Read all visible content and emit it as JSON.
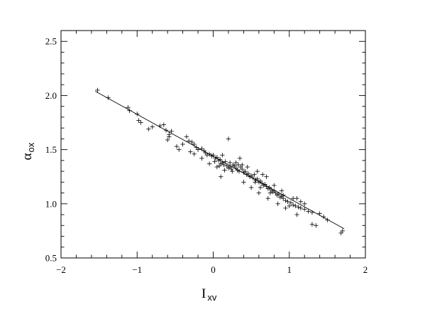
{
  "chart_data": {
    "type": "scatter",
    "xlabel": {
      "main": "I",
      "sub": "xv"
    },
    "ylabel": {
      "main": "α",
      "sub": "ox"
    },
    "xlim": [
      -2,
      2
    ],
    "ylim": [
      0.5,
      2.6
    ],
    "x_major_ticks": [
      -2,
      -1,
      0,
      1,
      2
    ],
    "x_tick_labels": [
      "−2",
      "−1",
      "0",
      "1",
      "2"
    ],
    "y_major_ticks": [
      0.5,
      1.0,
      1.5,
      2.0,
      2.5
    ],
    "y_tick_labels": [
      "0.5",
      "1.0",
      "1.5",
      "2.0",
      "2.5"
    ],
    "x_minor_step": 0.2,
    "y_minor_step": 0.1,
    "grid": false,
    "marker": "plus",
    "fit_line": {
      "x": [
        -1.55,
        1.72
      ],
      "y": [
        2.04,
        0.77
      ]
    },
    "points": [
      [
        -1.52,
        2.05
      ],
      [
        -1.38,
        1.98
      ],
      [
        -1.12,
        1.89
      ],
      [
        -1.0,
        1.83
      ],
      [
        -0.98,
        1.77
      ],
      [
        -0.95,
        1.75
      ],
      [
        -0.85,
        1.69
      ],
      [
        -0.8,
        1.71
      ],
      [
        -0.7,
        1.72
      ],
      [
        -0.62,
        1.68
      ],
      [
        -0.55,
        1.67
      ],
      [
        -0.58,
        1.64
      ],
      [
        -0.6,
        1.59
      ],
      [
        -0.58,
        1.62
      ],
      [
        -0.35,
        1.62
      ],
      [
        -0.48,
        1.53
      ],
      [
        -0.32,
        1.58
      ],
      [
        -0.28,
        1.57
      ],
      [
        -0.25,
        1.55
      ],
      [
        -0.22,
        1.52
      ],
      [
        -0.2,
        1.5
      ],
      [
        -0.3,
        1.48
      ],
      [
        -0.15,
        1.51
      ],
      [
        -0.12,
        1.49
      ],
      [
        -0.1,
        1.47
      ],
      [
        -0.08,
        1.45
      ],
      [
        -0.05,
        1.46
      ],
      [
        -0.02,
        1.44
      ],
      [
        0.0,
        1.45
      ],
      [
        0.03,
        1.42
      ],
      [
        0.05,
        1.43
      ],
      [
        0.07,
        1.4
      ],
      [
        0.09,
        1.41
      ],
      [
        0.1,
        1.37
      ],
      [
        0.12,
        1.38
      ],
      [
        0.08,
        1.35
      ],
      [
        0.05,
        1.34
      ],
      [
        0.14,
        1.36
      ],
      [
        0.16,
        1.39
      ],
      [
        0.18,
        1.35
      ],
      [
        0.2,
        1.33
      ],
      [
        0.22,
        1.34
      ],
      [
        0.24,
        1.32
      ],
      [
        0.26,
        1.36
      ],
      [
        0.28,
        1.35
      ],
      [
        0.3,
        1.33
      ],
      [
        0.32,
        1.31
      ],
      [
        0.34,
        1.3
      ],
      [
        0.3,
        1.38
      ],
      [
        0.33,
        1.36
      ],
      [
        0.36,
        1.34
      ],
      [
        0.38,
        1.32
      ],
      [
        0.4,
        1.29
      ],
      [
        0.42,
        1.3
      ],
      [
        0.44,
        1.27
      ],
      [
        0.46,
        1.28
      ],
      [
        0.48,
        1.25
      ],
      [
        0.5,
        1.26
      ],
      [
        0.52,
        1.24
      ],
      [
        0.54,
        1.27
      ],
      [
        0.56,
        1.22
      ],
      [
        0.58,
        1.23
      ],
      [
        0.6,
        1.2
      ],
      [
        0.62,
        1.21
      ],
      [
        0.64,
        1.19
      ],
      [
        0.66,
        1.17
      ],
      [
        0.68,
        1.18
      ],
      [
        0.7,
        1.16
      ],
      [
        0.72,
        1.14
      ],
      [
        0.74,
        1.15
      ],
      [
        0.76,
        1.13
      ],
      [
        0.78,
        1.11
      ],
      [
        0.8,
        1.12
      ],
      [
        0.82,
        1.1
      ],
      [
        0.84,
        1.08
      ],
      [
        0.86,
        1.09
      ],
      [
        0.88,
        1.06
      ],
      [
        0.9,
        1.07
      ],
      [
        0.92,
        1.05
      ],
      [
        0.95,
        1.03
      ],
      [
        0.98,
        1.02
      ],
      [
        1.02,
        1.01
      ],
      [
        1.05,
        0.99
      ],
      [
        1.08,
        0.98
      ],
      [
        1.12,
        0.97
      ],
      [
        1.15,
        0.96
      ],
      [
        1.2,
        0.95
      ],
      [
        1.25,
        0.93
      ],
      [
        1.3,
        0.92
      ],
      [
        1.4,
        0.91
      ],
      [
        1.45,
        0.88
      ],
      [
        1.5,
        0.85
      ],
      [
        1.3,
        0.81
      ],
      [
        1.35,
        0.8
      ],
      [
        1.68,
        0.73
      ],
      [
        1.7,
        0.75
      ],
      [
        0.2,
        1.6
      ],
      [
        0.1,
        1.25
      ],
      [
        -0.05,
        1.37
      ],
      [
        0.6,
        1.1
      ],
      [
        0.85,
        1.0
      ],
      [
        0.95,
        0.96
      ],
      [
        1.0,
        0.98
      ],
      [
        1.1,
        0.9
      ],
      [
        0.72,
        1.05
      ],
      [
        0.5,
        1.15
      ],
      [
        0.55,
        1.2
      ],
      [
        0.45,
        1.34
      ],
      [
        0.35,
        1.42
      ],
      [
        0.25,
        1.3
      ],
      [
        0.15,
        1.31
      ],
      [
        0.4,
        1.2
      ],
      [
        0.65,
        1.27
      ],
      [
        0.7,
        1.25
      ],
      [
        0.8,
        1.17
      ],
      [
        0.9,
        1.12
      ],
      [
        1.1,
        1.05
      ],
      [
        1.2,
        1.0
      ],
      [
        -0.4,
        1.55
      ],
      [
        -0.45,
        1.5
      ],
      [
        -0.25,
        1.46
      ],
      [
        -0.15,
        1.42
      ],
      [
        0.02,
        1.39
      ],
      [
        0.12,
        1.45
      ],
      [
        0.22,
        1.38
      ],
      [
        0.38,
        1.36
      ],
      [
        0.58,
        1.3
      ],
      [
        0.62,
        1.15
      ],
      [
        0.75,
        1.1
      ],
      [
        0.92,
        1.08
      ],
      [
        1.05,
        1.05
      ],
      [
        1.15,
        1.02
      ],
      [
        -1.1,
        1.86
      ],
      [
        -0.65,
        1.73
      ]
    ]
  }
}
